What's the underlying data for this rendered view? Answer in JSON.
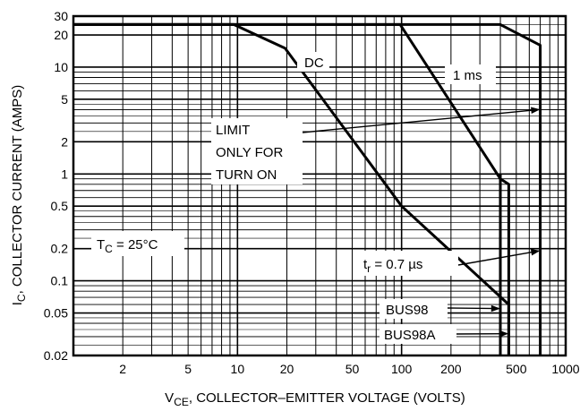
{
  "chart_data": {
    "type": "line",
    "xscale": "log",
    "yscale": "log",
    "xlim": [
      1,
      1000
    ],
    "ylim": [
      0.02,
      30
    ],
    "xlabel": {
      "main": "V",
      "sub": "CE",
      "rest": ", COLLECTOR–EMITTER VOLTAGE (VOLTS)"
    },
    "ylabel": {
      "main": "I",
      "sub": "C",
      "rest": ", COLLECTOR CURRENT (AMPS)"
    },
    "x_ticks": [
      {
        "v": 2,
        "label": "2"
      },
      {
        "v": 5,
        "label": "5"
      },
      {
        "v": 10,
        "label": "10"
      },
      {
        "v": 20,
        "label": "20"
      },
      {
        "v": 50,
        "label": "50"
      },
      {
        "v": 100,
        "label": "100"
      },
      {
        "v": 200,
        "label": "200"
      },
      {
        "v": 500,
        "label": "500"
      },
      {
        "v": 1000,
        "label": "1000"
      }
    ],
    "y_ticks": [
      {
        "v": 0.02,
        "label": "0.02"
      },
      {
        "v": 0.05,
        "label": "0.05"
      },
      {
        "v": 0.1,
        "label": "0.1"
      },
      {
        "v": 0.2,
        "label": "0.2"
      },
      {
        "v": 0.5,
        "label": "0.5"
      },
      {
        "v": 1,
        "label": "1"
      },
      {
        "v": 2,
        "label": "2"
      },
      {
        "v": 5,
        "label": "5"
      },
      {
        "v": 10,
        "label": "10"
      },
      {
        "v": 20,
        "label": "20"
      },
      {
        "v": 30,
        "label": "30"
      }
    ],
    "series": [
      {
        "name": "DC",
        "x": [
          1,
          9.5,
          19.5,
          100,
          450,
          450
        ],
        "y": [
          25,
          25,
          15,
          0.5,
          0.06,
          0.02
        ]
      },
      {
        "name": "1 ms",
        "x": [
          1,
          98,
          400,
          450,
          450
        ],
        "y": [
          25,
          25,
          0.9,
          0.8,
          0.02
        ]
      },
      {
        "name": "",
        "x": [
          1,
          400,
          700,
          700
        ],
        "y": [
          25,
          25,
          16,
          0.02
        ]
      },
      {
        "name": "",
        "x": [
          400,
          400
        ],
        "y": [
          1,
          0.02
        ]
      }
    ],
    "annotations": {
      "dc": "DC",
      "one_ms": "1 ms",
      "limit_lines": [
        "LIMIT",
        "ONLY FOR",
        "TURN ON"
      ],
      "tc": {
        "main": "T",
        "sub": "C",
        "rest": " = 25°C"
      },
      "tr": {
        "main": "t",
        "sub": "r",
        "rest": " = 0.7 µs"
      },
      "bus98": "BUS98",
      "bus98a": "BUS98A"
    },
    "grid": true,
    "legend": "none"
  }
}
